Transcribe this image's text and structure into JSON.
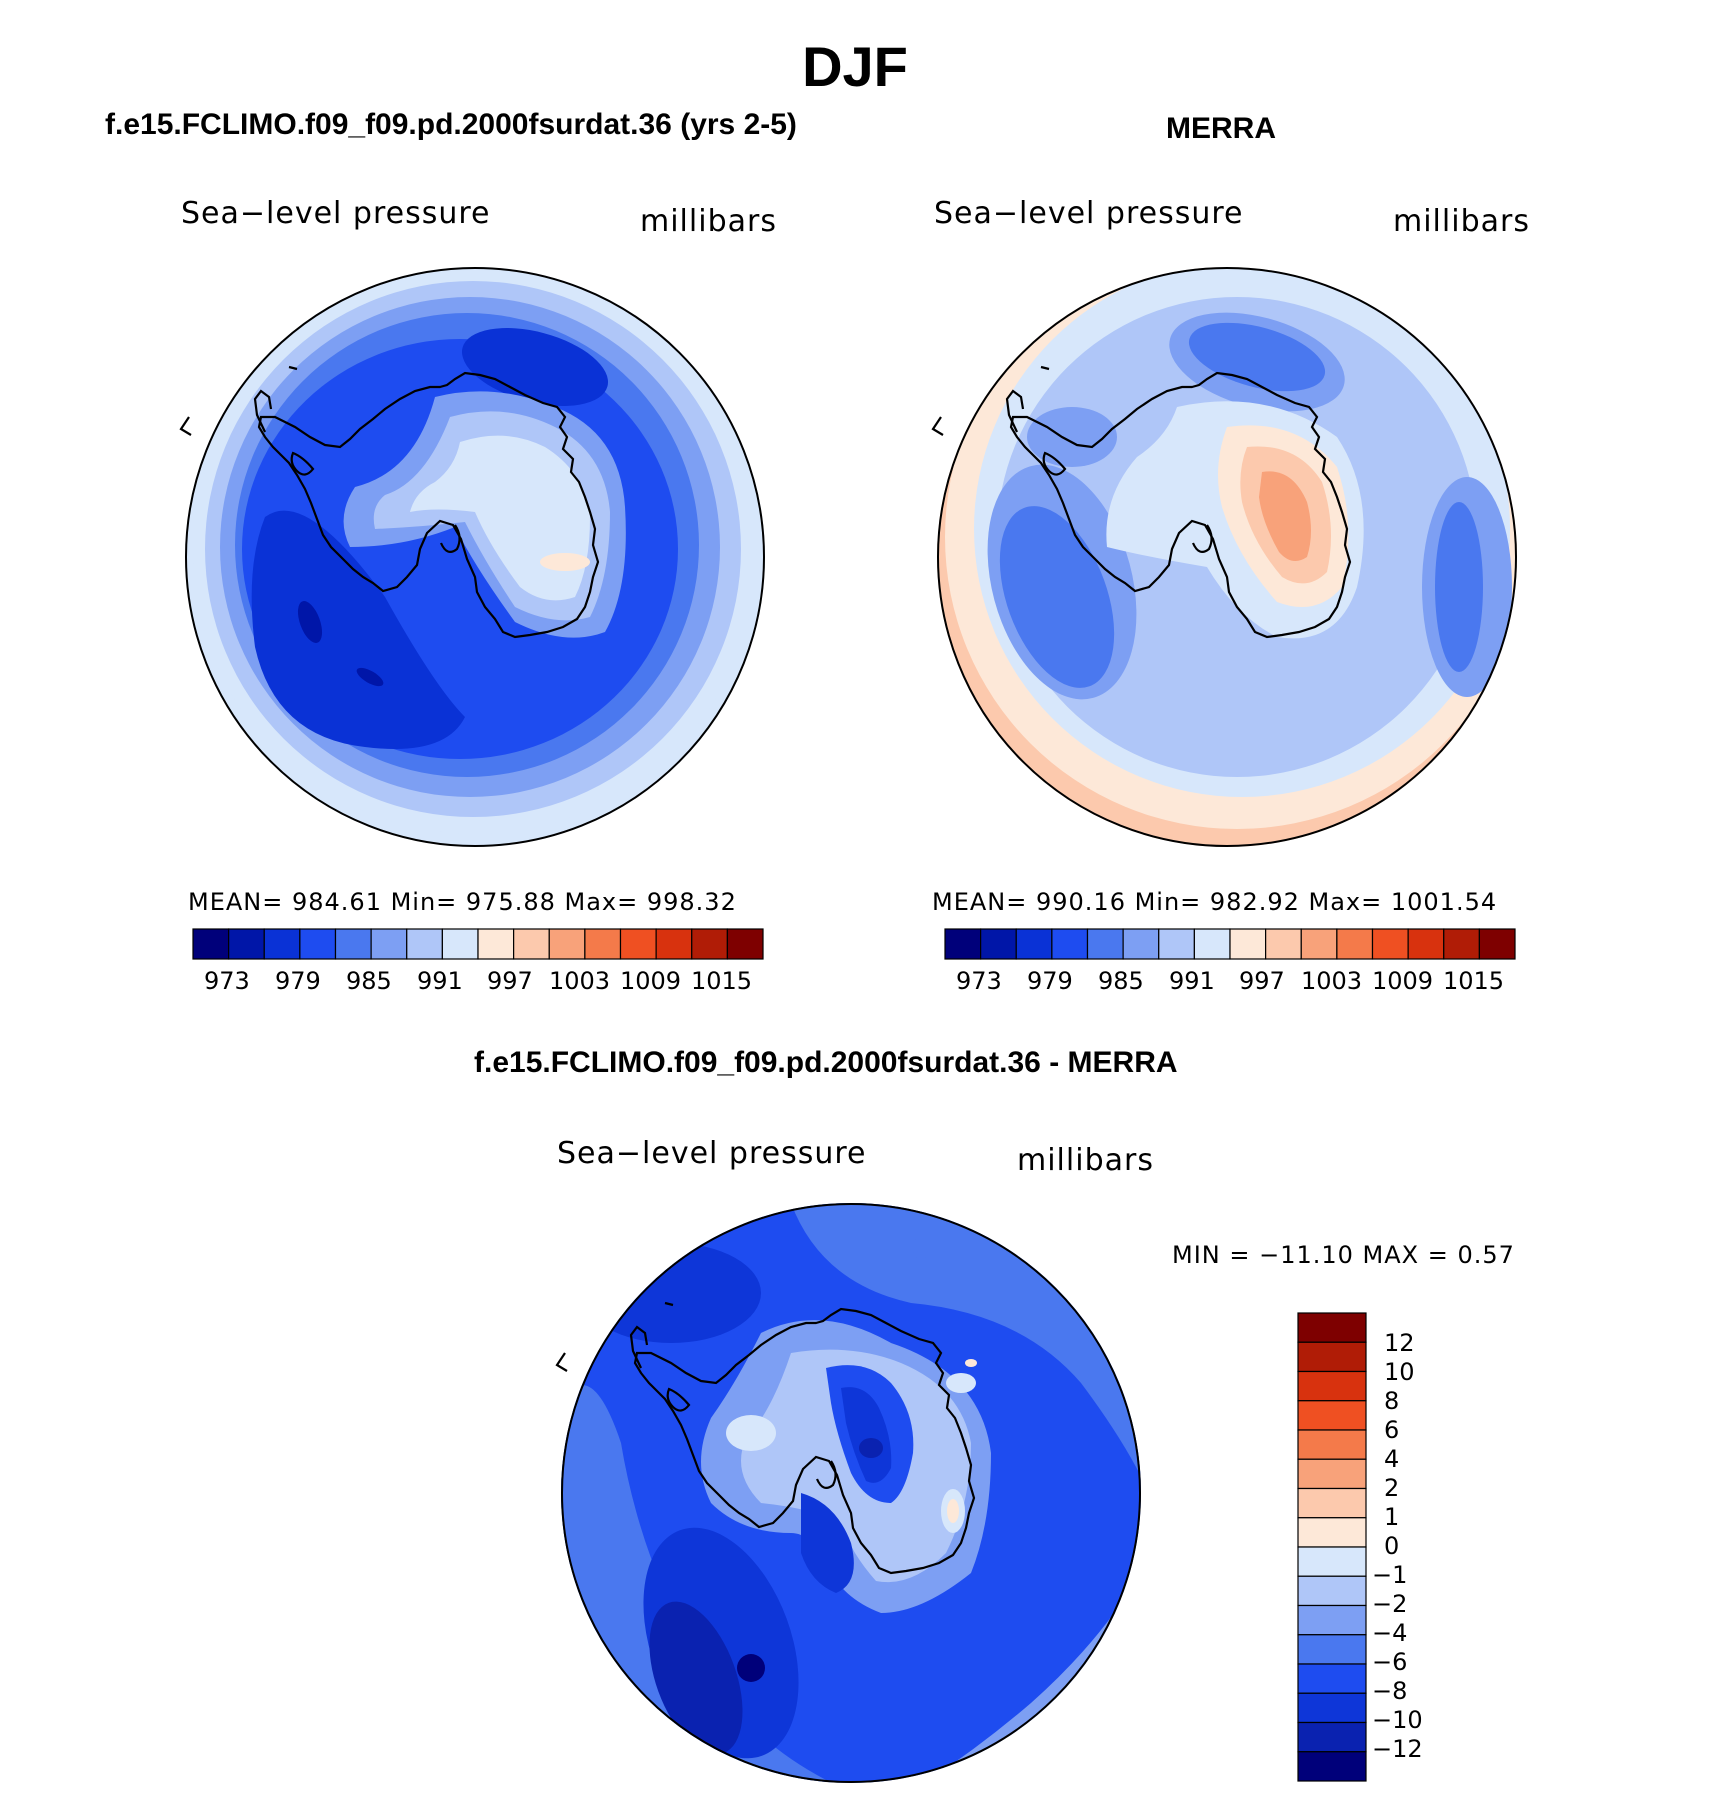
{
  "figure": {
    "season": "DJF",
    "top_left": {
      "title": "f.e15.FCLIMO.f09_f09.pd.2000fsurdat.36 (yrs 2-5)",
      "variable": "Sea−level pressure",
      "units": "millibars",
      "stats": "MEAN=  984.61    Min=  975.88    Max=  998.32"
    },
    "top_right": {
      "title": "MERRA",
      "variable": "Sea−level pressure",
      "units": "millibars",
      "stats": "MEAN=  990.16    Min=  982.92    Max=  1001.54"
    },
    "bottom": {
      "title": "f.e15.FCLIMO.f09_f09.pd.2000fsurdat.36 - MERRA",
      "variable": "Sea−level pressure",
      "units": "millibars",
      "stats": "MIN  =  −11.10  MAX  =     0.57"
    },
    "abs_colorbar": {
      "colors": [
        "#00007a",
        "#0016a8",
        "#0a32d6",
        "#1e4cf0",
        "#4a78ef",
        "#7d9ff3",
        "#afc6f8",
        "#d7e7fb",
        "#fde8d8",
        "#fcc9ad",
        "#f8a27a",
        "#f47a4a",
        "#ef5022",
        "#d8320e",
        "#b01c06",
        "#7e0000"
      ],
      "tick_labels": [
        "973",
        "979",
        "985",
        "991",
        "997",
        "1003",
        "1009",
        "1015"
      ]
    },
    "diff_colorbar": {
      "colors": [
        "#00007a",
        "#0a22b0",
        "#0e36d8",
        "#1e4cf0",
        "#4a78ef",
        "#7d9ff3",
        "#afc6f8",
        "#d7e7fb",
        "#fde8d8",
        "#fcc9ad",
        "#f8a27a",
        "#f47a4a",
        "#ef5022",
        "#d8320e",
        "#b01c06",
        "#7e0000"
      ],
      "tick_labels": [
        "12",
        "10",
        "8",
        "6",
        "4",
        "2",
        "1",
        "0",
        "−1",
        "−2",
        "−4",
        "−6",
        "−8",
        "−10",
        "−12"
      ]
    }
  }
}
